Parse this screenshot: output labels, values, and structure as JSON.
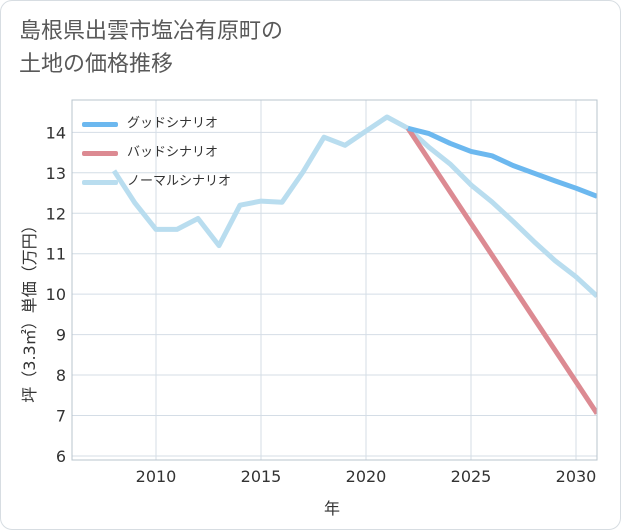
{
  "title_line1": "島根県出雲市塩冶有原町の",
  "title_line2": "土地の価格推移",
  "chart_data": {
    "type": "line",
    "xlabel": "年",
    "ylabel": "坪（3.3㎡）単価（万円）",
    "xlim": [
      2006,
      2031
    ],
    "ylim": [
      5.9,
      14.8
    ],
    "x_ticks": [
      2010,
      2015,
      2020,
      2025,
      2030
    ],
    "y_ticks": [
      6,
      7,
      8,
      9,
      10,
      11,
      12,
      13,
      14
    ],
    "grid": true,
    "legend_position": "top-left",
    "series": [
      {
        "name": "グッドシナリオ",
        "color": "#6cb8ef",
        "x": [
          2022,
          2023,
          2024,
          2025,
          2026,
          2027,
          2028,
          2029,
          2030,
          2031
        ],
        "y": [
          14.1,
          13.97,
          13.73,
          13.53,
          13.42,
          13.18,
          12.99,
          12.8,
          12.62,
          12.42
        ]
      },
      {
        "name": "バッドシナリオ",
        "color": "#dc8a92",
        "x": [
          2022,
          2031
        ],
        "y": [
          14.1,
          7.05
        ]
      },
      {
        "name": "ノーマルシナリオ",
        "color": "#b9ddef",
        "x": [
          2008,
          2009,
          2010,
          2011,
          2012,
          2013,
          2014,
          2015,
          2016,
          2017,
          2018,
          2019,
          2020,
          2021,
          2022,
          2023,
          2024,
          2025,
          2026,
          2027,
          2028,
          2029,
          2030,
          2031
        ],
        "y": [
          13.05,
          12.25,
          11.6,
          11.6,
          11.87,
          11.2,
          12.2,
          12.3,
          12.27,
          13.02,
          13.88,
          13.68,
          14.03,
          14.38,
          14.1,
          13.63,
          13.22,
          12.7,
          12.28,
          11.8,
          11.3,
          10.83,
          10.43,
          9.95
        ]
      }
    ]
  }
}
